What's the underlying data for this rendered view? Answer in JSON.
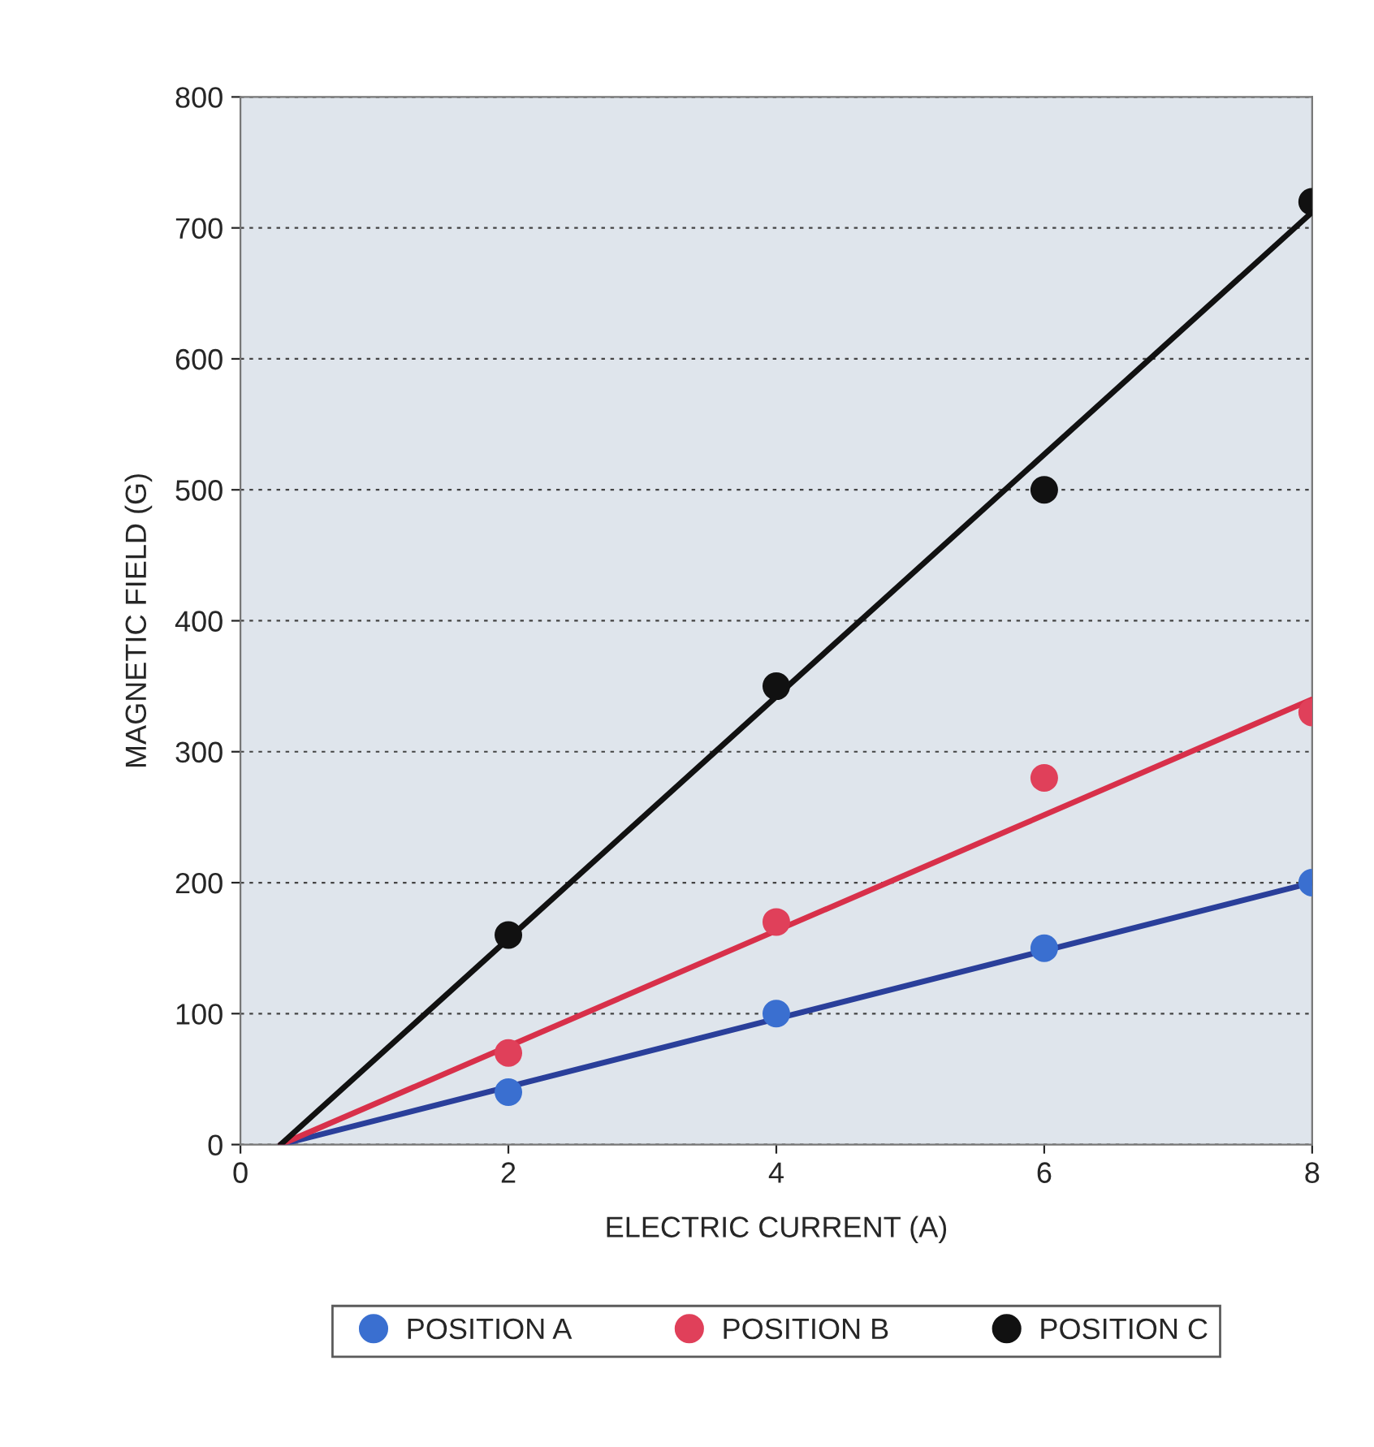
{
  "chart_data": {
    "type": "scatter",
    "xlabel": "ELECTRIC CURRENT (A)",
    "ylabel": "MAGNETIC FIELD (G)",
    "xlim": [
      0,
      8
    ],
    "xticks": [
      0,
      2,
      4,
      6,
      8
    ],
    "ylim": [
      0,
      800
    ],
    "yticks": [
      0,
      100,
      200,
      300,
      400,
      500,
      600,
      700,
      800
    ],
    "grid": "y",
    "legend": "bottom",
    "marker": "circle",
    "series": [
      {
        "name": "POSITION A",
        "color": "#3a6fd0",
        "x": [
          2,
          4,
          6,
          8
        ],
        "values": [
          40,
          100,
          150,
          200
        ]
      },
      {
        "name": "POSITION B",
        "color": "#e0405a",
        "x": [
          2,
          4,
          6,
          8
        ],
        "values": [
          70,
          170,
          280,
          330
        ]
      },
      {
        "name": "POSITION C",
        "color": "#111111",
        "x": [
          2,
          4,
          6,
          8
        ],
        "values": [
          160,
          350,
          500,
          720
        ]
      },
      {
        "type": "line",
        "marker": "none",
        "color": "#2a3f9a",
        "x": [
          0.3,
          8
        ],
        "values": [
          0,
          200
        ]
      },
      {
        "type": "line",
        "marker": "none",
        "color": "#d8304a",
        "x": [
          0.3,
          8
        ],
        "values": [
          0,
          340
        ]
      },
      {
        "type": "line",
        "marker": "none",
        "color": "#111111",
        "x": [
          0.3,
          8
        ],
        "values": [
          0,
          712
        ]
      }
    ]
  }
}
